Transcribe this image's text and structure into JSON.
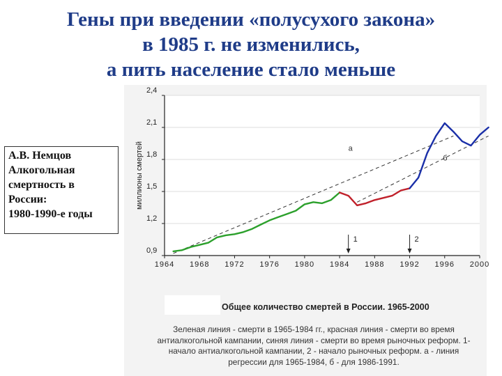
{
  "title_lines": [
    "Гены при введении «полусухого закона»",
    "в 1985 г. не изменились,",
    "а пить население стало меньше"
  ],
  "side_note_lines": [
    "А.В. Немцов",
    "Алкогольная",
    "смертность в",
    "России:",
    "1980-1990-е годы"
  ],
  "chart_data": {
    "type": "line",
    "ylabel": "миллионы смертей",
    "xlabel": "",
    "xlim": [
      1964,
      2000
    ],
    "ylim": [
      0.9,
      2.4
    ],
    "x_ticks": [
      1964,
      1968,
      1972,
      1976,
      1980,
      1984,
      1988,
      1992,
      1996,
      2000
    ],
    "y_ticks": [
      "0,9",
      "1,2",
      "1,5",
      "1,8",
      "2,1",
      "2,4"
    ],
    "y_tick_values": [
      0.9,
      1.2,
      1.5,
      1.8,
      2.1,
      2.4
    ],
    "series": [
      {
        "color": "#2ca02c",
        "points": [
          [
            1965,
            0.94
          ],
          [
            1966,
            0.95
          ],
          [
            1967,
            0.98
          ],
          [
            1968,
            1.0
          ],
          [
            1969,
            1.02
          ],
          [
            1970,
            1.07
          ],
          [
            1971,
            1.09
          ],
          [
            1972,
            1.1
          ],
          [
            1973,
            1.12
          ],
          [
            1974,
            1.15
          ],
          [
            1975,
            1.19
          ],
          [
            1976,
            1.23
          ],
          [
            1977,
            1.26
          ],
          [
            1978,
            1.29
          ],
          [
            1979,
            1.32
          ],
          [
            1980,
            1.38
          ],
          [
            1981,
            1.4
          ],
          [
            1982,
            1.39
          ],
          [
            1983,
            1.42
          ],
          [
            1984,
            1.49
          ]
        ]
      },
      {
        "color": "#c0202a",
        "points": [
          [
            1984,
            1.49
          ],
          [
            1985,
            1.46
          ],
          [
            1986,
            1.37
          ],
          [
            1987,
            1.39
          ],
          [
            1988,
            1.42
          ],
          [
            1989,
            1.44
          ],
          [
            1990,
            1.46
          ],
          [
            1991,
            1.51
          ],
          [
            1992,
            1.53
          ]
        ]
      },
      {
        "color": "#1a2fa8",
        "points": [
          [
            1992,
            1.53
          ],
          [
            1993,
            1.63
          ],
          [
            1994,
            1.86
          ],
          [
            1995,
            2.02
          ],
          [
            1996,
            2.14
          ],
          [
            1997,
            2.06
          ],
          [
            1998,
            1.97
          ],
          [
            1999,
            1.93
          ],
          [
            2000,
            2.03
          ],
          [
            2001,
            2.1
          ]
        ]
      }
    ],
    "regression_lines": [
      {
        "label": "а",
        "from": [
          1965,
          0.92
        ],
        "to": [
          1997,
          2.02
        ]
      },
      {
        "label": "б",
        "from": [
          1986,
          1.4
        ],
        "to": [
          2001,
          2.02
        ]
      }
    ],
    "markers": [
      {
        "label": "1",
        "x": 1985
      },
      {
        "label": "2",
        "x": 1992
      }
    ]
  },
  "caption": {
    "title": "Общее количество смертей в России. 1965-2000",
    "lines": [
      "Зеленая линия - смерти в 1965-1984 гг., красная линия - смерти во время",
      "антиалкогольной кампании, синяя линия - смерти во время рыночных реформ. 1-",
      "начало антиалкогольной кампании, 2 - начало рыночных реформ. а - линия",
      "регрессии для 1965-1984, б - для 1986-1991."
    ]
  }
}
